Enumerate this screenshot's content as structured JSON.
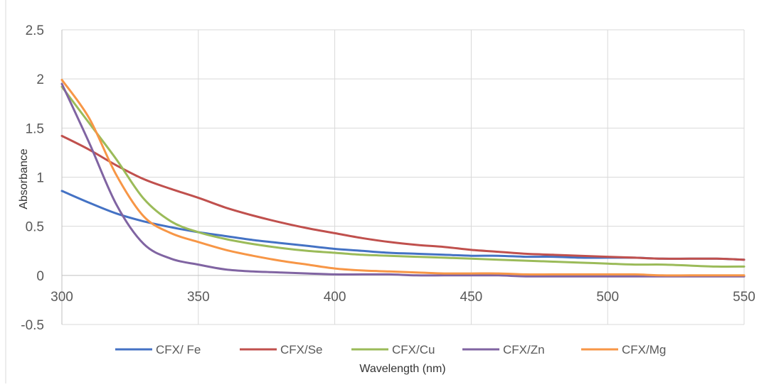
{
  "chart_data": {
    "type": "line",
    "title": "",
    "xlabel": "Wavelength (nm)",
    "ylabel": "Absorbance",
    "xlim": [
      300,
      550
    ],
    "ylim": [
      -0.5,
      2.5
    ],
    "x_ticks": [
      300,
      350,
      400,
      450,
      500,
      550
    ],
    "y_ticks": [
      -0.5,
      0,
      0.5,
      1,
      1.5,
      2,
      2.5
    ],
    "x_tick_labels": [
      "300",
      "350",
      "400",
      "450",
      "500",
      "550"
    ],
    "y_tick_labels": [
      "-0.5",
      "0",
      "0.5",
      "1",
      "1.5",
      "2",
      "2.5"
    ],
    "grid": true,
    "legend_position": "bottom",
    "x": [
      300,
      310,
      320,
      330,
      340,
      350,
      360,
      370,
      380,
      390,
      400,
      410,
      420,
      430,
      440,
      450,
      460,
      470,
      480,
      490,
      500,
      510,
      520,
      530,
      540,
      550
    ],
    "series": [
      {
        "name": "CFX/ Fe",
        "color": "#4472C4",
        "values": [
          0.86,
          0.74,
          0.63,
          0.55,
          0.49,
          0.44,
          0.4,
          0.36,
          0.33,
          0.3,
          0.27,
          0.25,
          0.23,
          0.22,
          0.21,
          0.2,
          0.2,
          0.19,
          0.19,
          0.18,
          0.18,
          0.18,
          0.17,
          0.17,
          0.17,
          0.16
        ]
      },
      {
        "name": "CFX/Se",
        "color": "#C0504D",
        "values": [
          1.42,
          1.28,
          1.12,
          0.98,
          0.88,
          0.79,
          0.69,
          0.61,
          0.54,
          0.48,
          0.43,
          0.38,
          0.34,
          0.31,
          0.29,
          0.26,
          0.24,
          0.22,
          0.21,
          0.2,
          0.19,
          0.18,
          0.17,
          0.17,
          0.17,
          0.16
        ]
      },
      {
        "name": "CFX/Cu",
        "color": "#9BBB59",
        "values": [
          1.92,
          1.55,
          1.18,
          0.78,
          0.55,
          0.44,
          0.37,
          0.32,
          0.28,
          0.25,
          0.23,
          0.21,
          0.2,
          0.19,
          0.18,
          0.17,
          0.16,
          0.15,
          0.14,
          0.13,
          0.12,
          0.11,
          0.11,
          0.1,
          0.09,
          0.09
        ]
      },
      {
        "name": "CFX/Zn",
        "color": "#8064A2",
        "values": [
          1.95,
          1.35,
          0.72,
          0.32,
          0.17,
          0.11,
          0.06,
          0.04,
          0.03,
          0.02,
          0.01,
          0.01,
          0.01,
          0.0,
          0.0,
          0.0,
          0.0,
          -0.01,
          -0.01,
          -0.01,
          -0.01,
          -0.01,
          -0.01,
          -0.01,
          -0.01,
          -0.01
        ]
      },
      {
        "name": "CFX/Mg",
        "color": "#F79646",
        "values": [
          1.99,
          1.6,
          1.02,
          0.6,
          0.43,
          0.34,
          0.26,
          0.2,
          0.15,
          0.11,
          0.07,
          0.05,
          0.04,
          0.03,
          0.02,
          0.02,
          0.02,
          0.01,
          0.01,
          0.01,
          0.01,
          0.01,
          0.0,
          0.0,
          0.0,
          0.0
        ]
      }
    ]
  }
}
